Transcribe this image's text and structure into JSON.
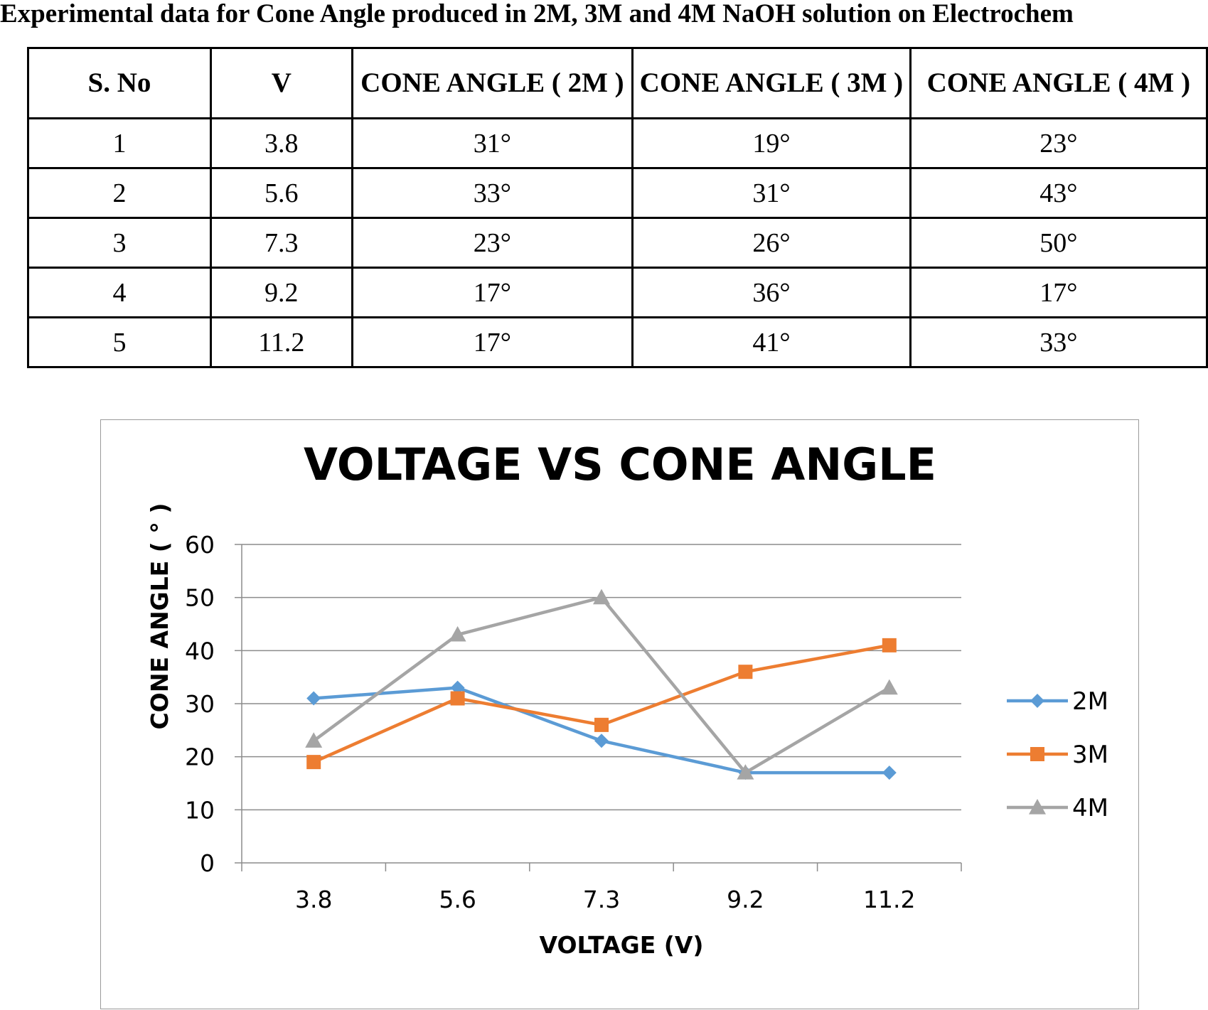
{
  "heading": "Experimental data for Cone Angle produced in 2M, 3M and 4M NaOH solution on Electrochem",
  "table": {
    "headers": [
      "S. No",
      "V",
      "CONE ANGLE ( 2M )",
      "CONE ANGLE ( 3M )",
      "CONE ANGLE ( 4M )"
    ],
    "rows": [
      [
        "1",
        "3.8",
        "31°",
        "19°",
        "23°"
      ],
      [
        "2",
        "5.6",
        "33°",
        "31°",
        "43°"
      ],
      [
        "3",
        "7.3",
        "23°",
        "26°",
        "50°"
      ],
      [
        "4",
        "9.2",
        "17°",
        "36°",
        "17°"
      ],
      [
        "5",
        "11.2",
        "17°",
        "41°",
        "33°"
      ]
    ]
  },
  "chart_data": {
    "type": "line",
    "title": "VOLTAGE VS CONE ANGLE",
    "xlabel": "VOLTAGE (V)",
    "ylabel": "CONE ANGLE ( ° )",
    "categories": [
      "3.8",
      "5.6",
      "7.3",
      "9.2",
      "11.2"
    ],
    "ylim": [
      0,
      60
    ],
    "yticks": [
      "0",
      "10",
      "20",
      "30",
      "40",
      "50",
      "60"
    ],
    "grid": true,
    "legend_position": "right",
    "series": [
      {
        "name": "2M",
        "values": [
          31,
          33,
          23,
          17,
          17
        ],
        "color": "#5B9BD5",
        "marker": "diamond"
      },
      {
        "name": "3M",
        "values": [
          19,
          31,
          26,
          36,
          41
        ],
        "color": "#ED7D31",
        "marker": "square"
      },
      {
        "name": "4M",
        "values": [
          23,
          43,
          50,
          17,
          33
        ],
        "color": "#A5A5A5",
        "marker": "triangle"
      }
    ]
  }
}
